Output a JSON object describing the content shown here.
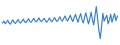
{
  "chart_data": {
    "type": "line",
    "color": "#3a7fd0",
    "tick_labels": false,
    "grid": false,
    "ylim": [
      0,
      100
    ],
    "values": [
      50,
      55,
      48,
      52,
      57,
      50,
      47,
      53,
      58,
      51,
      49,
      54,
      59,
      52,
      50,
      55,
      60,
      53,
      51,
      56,
      61,
      54,
      52,
      57,
      62,
      55,
      53,
      58,
      63,
      56,
      54,
      58,
      62,
      55,
      52,
      57,
      63,
      56,
      53,
      59,
      64,
      57,
      54,
      60,
      66,
      58,
      55,
      62,
      68,
      59,
      55,
      63,
      70,
      60,
      54,
      64,
      72,
      60,
      52,
      65,
      74,
      58,
      50,
      66,
      76,
      60,
      48,
      62,
      78,
      58,
      45,
      70,
      92,
      60,
      30,
      10,
      40,
      75,
      55,
      62,
      70,
      48,
      58,
      72,
      52,
      64,
      74,
      56,
      66,
      70
    ]
  }
}
